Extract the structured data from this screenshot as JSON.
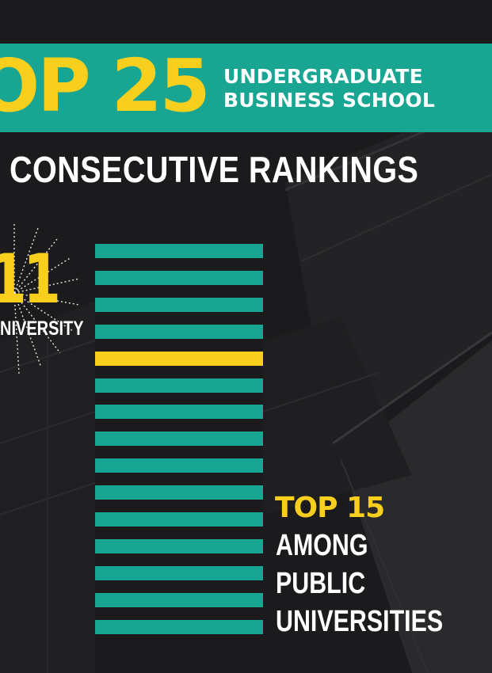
{
  "banner": {
    "big_text": "OP 25",
    "line1": "UNDERGRADUATE",
    "line2": "BUSINESS SCHOOL"
  },
  "heading": "CONSECUTIVE RANKINGS",
  "badge": {
    "number": "11",
    "label": "NIVERSITY"
  },
  "rankings_bars": {
    "total_bars": 15,
    "highlighted_index": 4
  },
  "callout": {
    "top_line": "TOP 15",
    "line1": "AMONG",
    "line2": "PUBLIC",
    "line3": "UNIVERSITIES"
  },
  "colors": {
    "teal": "#18a592",
    "yellow": "#f9cf1d",
    "background": "#1b1b1d",
    "text": "#ffffff"
  }
}
